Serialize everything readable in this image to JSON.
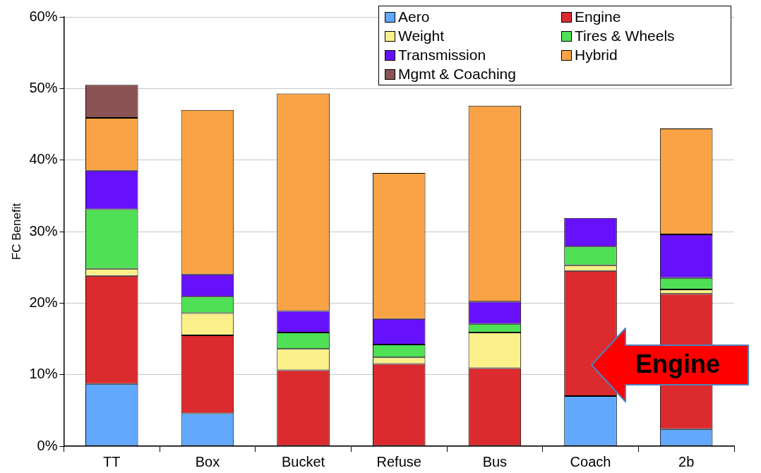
{
  "chart_data": {
    "type": "bar",
    "stacked": true,
    "ylabel": "FC Benefit",
    "categories": [
      "TT",
      "Box",
      "Bucket",
      "Refuse",
      "Bus",
      "Coach",
      "2b"
    ],
    "series": [
      {
        "name": "Aero",
        "color": "#62a8fe",
        "values": [
          8.7,
          4.6,
          0,
          0,
          0,
          7.0,
          2.4
        ]
      },
      {
        "name": "Engine",
        "color": "#dc2b2e",
        "values": [
          15.1,
          10.9,
          10.6,
          11.5,
          10.9,
          17.5,
          18.9
        ]
      },
      {
        "name": "Weight",
        "color": "#fcf08a",
        "values": [
          1.0,
          3.1,
          3.0,
          0.9,
          5.0,
          0.8,
          0.6
        ]
      },
      {
        "name": "Tires & Wheels",
        "color": "#50e055",
        "values": [
          8.3,
          2.3,
          2.3,
          1.8,
          1.2,
          2.6,
          1.6
        ]
      },
      {
        "name": "Transmission",
        "color": "#6610fb",
        "values": [
          5.4,
          3.1,
          3.0,
          3.6,
          3.1,
          4.0,
          6.1
        ]
      },
      {
        "name": "Hybrid",
        "color": "#faa346",
        "values": [
          7.4,
          23.0,
          30.4,
          20.4,
          27.4,
          0,
          14.8
        ]
      },
      {
        "name": "Mgmt & Coaching",
        "color": "#8b5254",
        "values": [
          4.6,
          0,
          0,
          0,
          0,
          0,
          0
        ]
      }
    ],
    "ylim": [
      0,
      60
    ],
    "yticks": [
      {
        "value": 0,
        "label": "0%"
      },
      {
        "value": 10,
        "label": "10%"
      },
      {
        "value": 20,
        "label": "20%"
      },
      {
        "value": 30,
        "label": "30%"
      },
      {
        "value": 40,
        "label": "40%"
      },
      {
        "value": 50,
        "label": "50%"
      },
      {
        "value": 60,
        "label": "60%"
      }
    ],
    "grid": "y",
    "legend": "top right",
    "annotations": [
      "Engine"
    ]
  }
}
